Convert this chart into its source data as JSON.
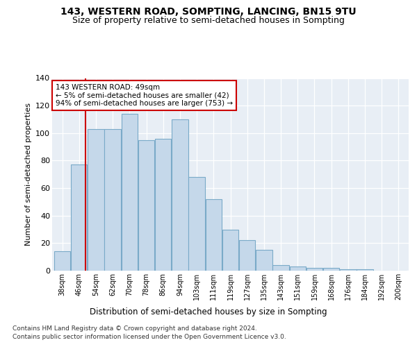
{
  "title": "143, WESTERN ROAD, SOMPTING, LANCING, BN15 9TU",
  "subtitle": "Size of property relative to semi-detached houses in Sompting",
  "xlabel": "Distribution of semi-detached houses by size in Sompting",
  "ylabel": "Number of semi-detached properties",
  "categories": [
    "38sqm",
    "46sqm",
    "54sqm",
    "62sqm",
    "70sqm",
    "78sqm",
    "86sqm",
    "94sqm",
    "103sqm",
    "111sqm",
    "119sqm",
    "127sqm",
    "135sqm",
    "143sqm",
    "151sqm",
    "159sqm",
    "168sqm",
    "176sqm",
    "184sqm",
    "192sqm",
    "200sqm"
  ],
  "bar_heights": [
    14,
    77,
    103,
    103,
    114,
    95,
    96,
    110,
    68,
    52,
    30,
    22,
    15,
    4,
    3,
    2,
    2,
    1,
    1,
    0,
    0
  ],
  "bar_color": "#c5d8ea",
  "bar_edge_color": "#7aaac8",
  "vline_color": "#cc0000",
  "annotation_text": "143 WESTERN ROAD: 49sqm\n← 5% of semi-detached houses are smaller (42)\n94% of semi-detached houses are larger (753) →",
  "annotation_box_color": "#ffffff",
  "annotation_box_edge": "#cc0000",
  "footer1": "Contains HM Land Registry data © Crown copyright and database right 2024.",
  "footer2": "Contains public sector information licensed under the Open Government Licence v3.0.",
  "bg_color": "#ffffff",
  "plot_bg_color": "#e8eef5",
  "ylim": [
    0,
    140
  ],
  "yticks": [
    0,
    20,
    40,
    60,
    80,
    100,
    120,
    140
  ]
}
